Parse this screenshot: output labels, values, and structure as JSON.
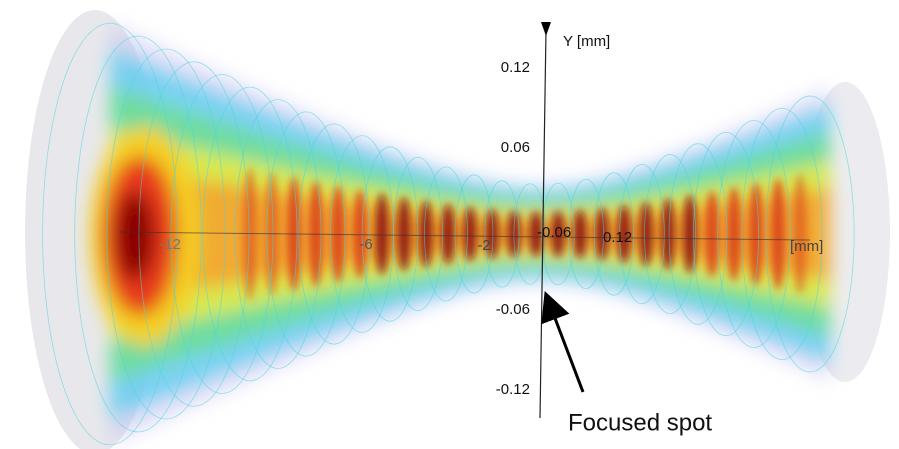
{
  "y_axis": {
    "label": "Y [mm]",
    "ticks": [
      "0.12",
      "0.06",
      "-0.06",
      "-0.12"
    ]
  },
  "x_axis": {
    "unit": "[mm]",
    "ticks": [
      "-12",
      "-6",
      "-2"
    ]
  },
  "z_axis": {
    "ticks": [
      "-0.06",
      "0.12"
    ]
  },
  "annotation": "Focused spot"
}
